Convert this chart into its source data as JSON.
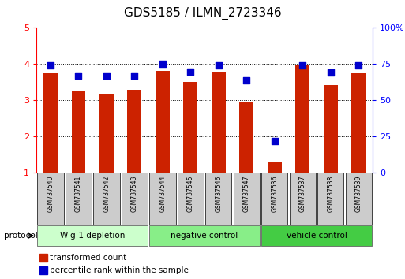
{
  "title": "GDS5185 / ILMN_2723346",
  "samples": [
    "GSM737540",
    "GSM737541",
    "GSM737542",
    "GSM737543",
    "GSM737544",
    "GSM737545",
    "GSM737546",
    "GSM737547",
    "GSM737536",
    "GSM737537",
    "GSM737538",
    "GSM737539"
  ],
  "transformed_count": [
    3.76,
    3.28,
    3.18,
    3.3,
    3.82,
    3.5,
    3.79,
    2.97,
    1.3,
    3.97,
    3.43,
    3.76
  ],
  "percentile_rank_pct": [
    74,
    67,
    67,
    67,
    75,
    70,
    74,
    64,
    22,
    74,
    69,
    74
  ],
  "groups": [
    {
      "label": "Wig-1 depletion",
      "start": 0,
      "end": 3,
      "color": "#ccffcc"
    },
    {
      "label": "negative control",
      "start": 4,
      "end": 7,
      "color": "#88ee88"
    },
    {
      "label": "vehicle control",
      "start": 8,
      "end": 11,
      "color": "#44cc44"
    }
  ],
  "bar_color": "#cc2200",
  "dot_color": "#0000cc",
  "ylim_left": [
    1,
    5
  ],
  "yticks_left": [
    1,
    2,
    3,
    4,
    5
  ],
  "ytick_labels_right": [
    "0",
    "25",
    "50",
    "75",
    "100%"
  ],
  "protocol_label": "protocol",
  "legend": [
    {
      "color": "#cc2200",
      "label": "transformed count"
    },
    {
      "color": "#0000cc",
      "label": "percentile rank within the sample"
    }
  ],
  "bar_width": 0.5,
  "dot_size": 35,
  "title_fontsize": 11
}
